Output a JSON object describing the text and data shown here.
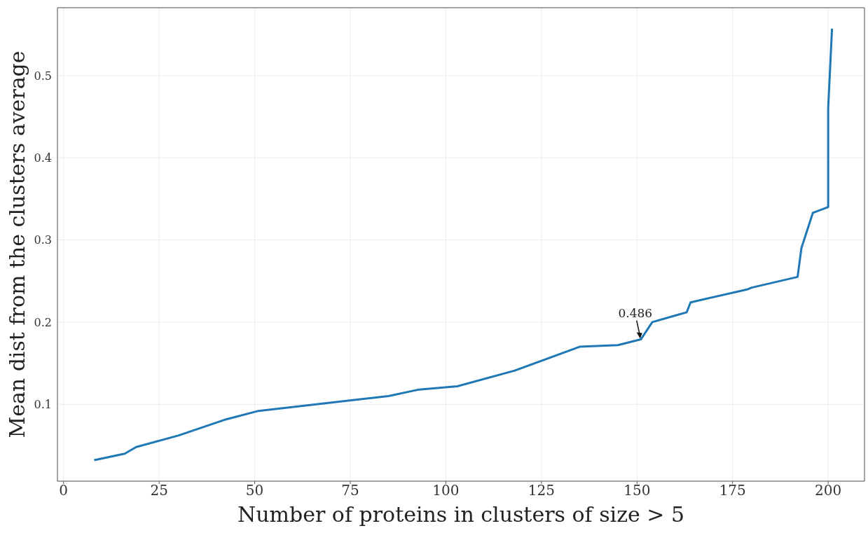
{
  "chart_data": {
    "type": "line",
    "xlabel": "Number of proteins in clusters of size > 5",
    "ylabel": "Mean dist from the clusters average",
    "x": [
      8,
      16,
      19,
      30,
      42,
      51,
      85,
      93,
      103,
      118,
      135,
      145,
      151,
      154,
      160,
      163,
      164,
      179,
      180,
      192,
      193,
      196,
      200,
      200,
      201
    ],
    "series": [
      {
        "color": "#1f77b4",
        "values": [
          0.032,
          0.04,
          0.048,
          0.062,
          0.081,
          0.092,
          0.11,
          0.118,
          0.122,
          0.141,
          0.17,
          0.172,
          0.179,
          0.2,
          0.208,
          0.212,
          0.224,
          0.24,
          0.242,
          0.255,
          0.29,
          0.333,
          0.34,
          0.46,
          0.557
        ]
      }
    ],
    "xlim": [
      -1.6,
      209.5
    ],
    "xticks": [
      0,
      25,
      50,
      75,
      100,
      125,
      150,
      175,
      200
    ],
    "ylim": [
      0.0065,
      0.5825
    ],
    "yticks": [
      0.1,
      0.2,
      0.3,
      0.4,
      0.5
    ],
    "grid": true,
    "legend": false,
    "marker": "none",
    "line_style": "solid",
    "annotations": [
      {
        "text": "0.486",
        "x": 151,
        "y": 0.179
      }
    ]
  }
}
